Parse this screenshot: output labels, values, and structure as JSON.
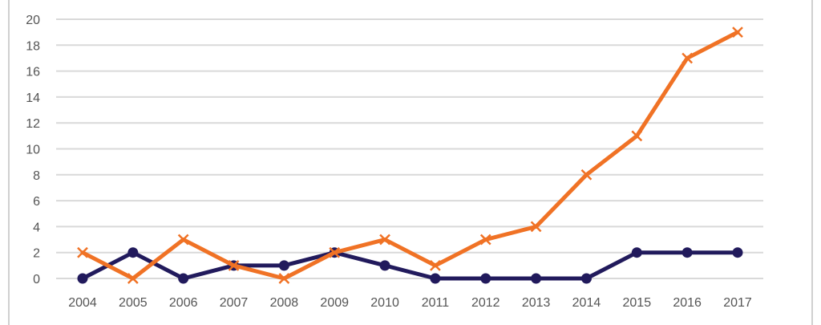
{
  "chart_data": {
    "type": "line",
    "title": "",
    "xlabel": "",
    "ylabel": "",
    "categories": [
      "2004",
      "2005",
      "2006",
      "2007",
      "2008",
      "2009",
      "2010",
      "2011",
      "2012",
      "2013",
      "2014",
      "2015",
      "2016",
      "2017"
    ],
    "ylim": [
      0,
      20
    ],
    "yticks": [
      "0",
      "2",
      "4",
      "6",
      "8",
      "10",
      "12",
      "14",
      "16",
      "18",
      "20"
    ],
    "grid": true,
    "legend": "none",
    "series": [
      {
        "color": "#211a5c",
        "marker": "circle",
        "values": [
          0,
          2,
          0,
          1,
          1,
          2,
          1,
          0,
          0,
          0,
          0,
          2,
          2,
          2
        ]
      },
      {
        "color": "#f07225",
        "marker": "x",
        "values": [
          2,
          0,
          3,
          1,
          0,
          2,
          3,
          1,
          3,
          4,
          8,
          11,
          17,
          19
        ]
      }
    ]
  }
}
